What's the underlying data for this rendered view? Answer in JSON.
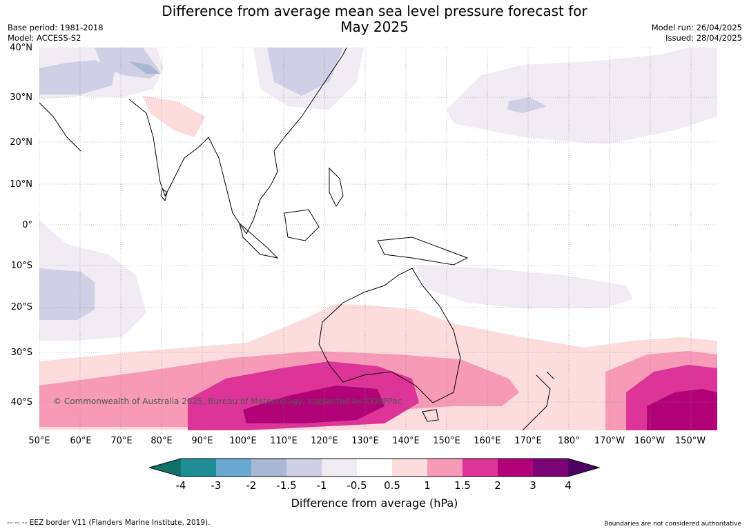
{
  "title": {
    "line1": "Difference from average mean sea level pressure forecast for",
    "line2": "May 2025"
  },
  "meta_left": {
    "base_period": "Base period: 1981-2018",
    "model": "Model: ACCESS-S2"
  },
  "meta_right": {
    "model_run": "Model run: 26/04/2025",
    "issued": "Issued: 28/04/2025"
  },
  "map": {
    "latitude_labels": [
      "40°N",
      "30°N",
      "20°N",
      "10°N",
      "0°",
      "10°S",
      "20°S",
      "30°S",
      "40°S"
    ],
    "longitude_labels": [
      "50°E",
      "60°E",
      "70°E",
      "80°E",
      "90°E",
      "100°E",
      "110°E",
      "120°E",
      "130°E",
      "140°E",
      "150°E",
      "160°E",
      "170°E",
      "180°",
      "170°W",
      "160°W",
      "150°W"
    ],
    "copyright": "© Commonwealth of Australia 2025, Bureau of Meteorology, supported by COSPPac",
    "gridlines": true
  },
  "colorbar": {
    "ticks": [
      "-4",
      "-3",
      "-2",
      "-1.5",
      "-1",
      "-0.5",
      "0.5",
      "1",
      "1.5",
      "2",
      "3",
      "4"
    ],
    "colors": {
      "below_min": "#11706a",
      "bins": [
        "#1e8d94",
        "#69a9d1",
        "#a9b7d3",
        "#cfd0e5",
        "#f1ecf4",
        "#ffffff",
        "#fcdcdd",
        "#f79ab8",
        "#dc3497",
        "#b10278",
        "#7b0177"
      ],
      "above_max": "#4e0064"
    },
    "label": "Difference from average (hPa)"
  },
  "footer": {
    "eez": "--  --  -- EEZ border V11 (Flanders Marine Institute, 2019).",
    "disclaimer": "Boundaries are not considered authoritative"
  }
}
